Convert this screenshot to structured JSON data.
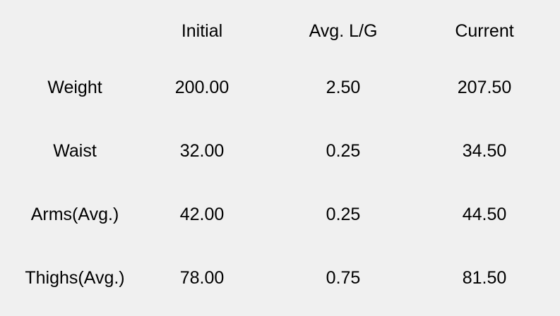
{
  "table": {
    "headers": [
      "",
      "Initial",
      "Avg. L/G",
      "Current"
    ],
    "rows": [
      {
        "label": "Weight",
        "initial": "200.00",
        "avg_lg": "2.50",
        "current": "207.50"
      },
      {
        "label": "Waist",
        "initial": "32.00",
        "avg_lg": "0.25",
        "current": "34.50"
      },
      {
        "label": "Arms(Avg.)",
        "initial": "42.00",
        "avg_lg": "0.25",
        "current": "44.50"
      },
      {
        "label": "Thighs(Avg.)",
        "initial": "78.00",
        "avg_lg": "0.75",
        "current": "81.50"
      }
    ]
  },
  "colors": {
    "background": "#f0f0f0",
    "text": "#000000"
  }
}
